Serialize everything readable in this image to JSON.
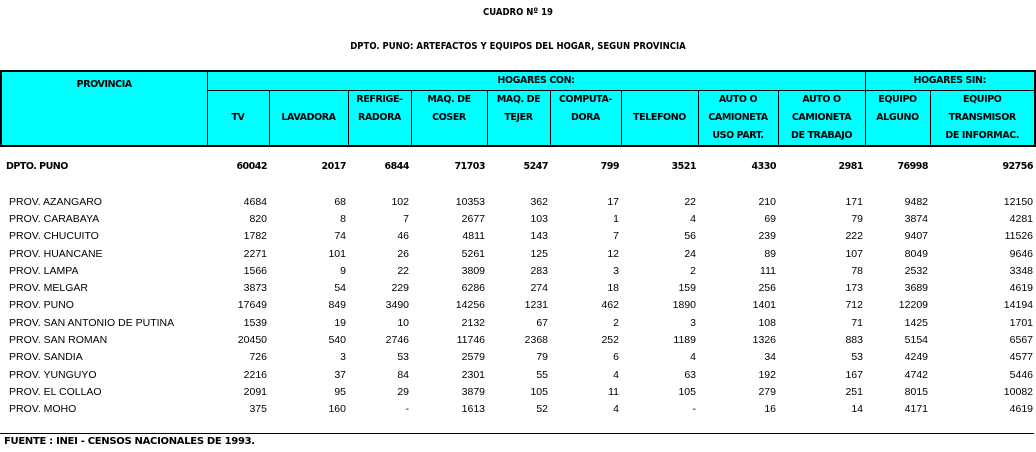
{
  "title": "CUADRO Nº 19",
  "subtitle": "DPTO. PUNO: ARTEFACTOS Y EQUIPOS DEL HOGAR, SEGUN PROVINCIA",
  "header": {
    "provincia": "PROVINCIA",
    "group_con": "HOGARES CON:",
    "group_sin": "HOGARES  SIN:",
    "columns": [
      [
        "",
        "TV",
        ""
      ],
      [
        "",
        "LAVADORA",
        ""
      ],
      [
        "REFRIGE-",
        "RADORA",
        ""
      ],
      [
        "MAQ. DE",
        "COSER",
        ""
      ],
      [
        "MAQ. DE",
        "TEJER",
        ""
      ],
      [
        "COMPUTA-",
        "DORA",
        ""
      ],
      [
        "",
        "TELEFONO",
        ""
      ],
      [
        "AUTO O",
        "CAMIONETA",
        "USO PART."
      ],
      [
        "AUTO O",
        "CAMIONETA",
        "DE TRABAJO"
      ],
      [
        "EQUIPO",
        "ALGUNO",
        ""
      ],
      [
        "EQUIPO",
        "TRANSMISOR",
        "DE INFORMAC."
      ]
    ]
  },
  "totals": {
    "name": "DPTO. PUNO",
    "values": [
      "60042",
      "2017",
      "6844",
      "71703",
      "5247",
      "799",
      "3521",
      "4330",
      "2981",
      "76998",
      "92756"
    ]
  },
  "rows": [
    {
      "name": "PROV. AZANGARO",
      "values": [
        "4684",
        "68",
        "102",
        "10353",
        "362",
        "17",
        "22",
        "210",
        "171",
        "9482",
        "12150"
      ]
    },
    {
      "name": "PROV. CARABAYA",
      "values": [
        "820",
        "8",
        "7",
        "2677",
        "103",
        "1",
        "4",
        "69",
        "79",
        "3874",
        "4281"
      ]
    },
    {
      "name": "PROV. CHUCUITO",
      "values": [
        "1782",
        "74",
        "46",
        "4811",
        "143",
        "7",
        "56",
        "239",
        "222",
        "9407",
        "11526"
      ]
    },
    {
      "name": "PROV. HUANCANE",
      "values": [
        "2271",
        "101",
        "26",
        "5261",
        "125",
        "12",
        "24",
        "89",
        "107",
        "8049",
        "9646"
      ]
    },
    {
      "name": "PROV. LAMPA",
      "values": [
        "1566",
        "9",
        "22",
        "3809",
        "283",
        "3",
        "2",
        "111",
        "78",
        "2532",
        "3348"
      ]
    },
    {
      "name": "PROV. MELGAR",
      "values": [
        "3873",
        "54",
        "229",
        "6286",
        "274",
        "18",
        "159",
        "256",
        "173",
        "3689",
        "4619"
      ]
    },
    {
      "name": "PROV. PUNO",
      "values": [
        "17649",
        "849",
        "3490",
        "14256",
        "1231",
        "462",
        "1890",
        "1401",
        "712",
        "12209",
        "14194"
      ]
    },
    {
      "name": "PROV. SAN ANTONIO DE PUTINA",
      "values": [
        "1539",
        "19",
        "10",
        "2132",
        "67",
        "2",
        "3",
        "108",
        "71",
        "1425",
        "1701"
      ]
    },
    {
      "name": "PROV. SAN ROMAN",
      "values": [
        "20450",
        "540",
        "2746",
        "11746",
        "2368",
        "252",
        "1189",
        "1326",
        "883",
        "5154",
        "6567"
      ]
    },
    {
      "name": "PROV. SANDIA",
      "values": [
        "726",
        "3",
        "53",
        "2579",
        "79",
        "6",
        "4",
        "34",
        "53",
        "4249",
        "4577"
      ]
    },
    {
      "name": "PROV. YUNGUYO",
      "values": [
        "2216",
        "37",
        "84",
        "2301",
        "55",
        "4",
        "63",
        "192",
        "167",
        "4742",
        "5446"
      ]
    },
    {
      "name": "PROV. EL COLLAO",
      "values": [
        "2091",
        "95",
        "29",
        "3879",
        "105",
        "11",
        "105",
        "279",
        "251",
        "8015",
        "10082"
      ]
    },
    {
      "name": "PROV. MOHO",
      "values": [
        "375",
        "160",
        "-",
        "1613",
        "52",
        "4",
        "-",
        "16",
        "14",
        "4171",
        "4619"
      ]
    }
  ],
  "footer": "FUENTE : INEI - CENSOS NACIONALES DE 1993."
}
